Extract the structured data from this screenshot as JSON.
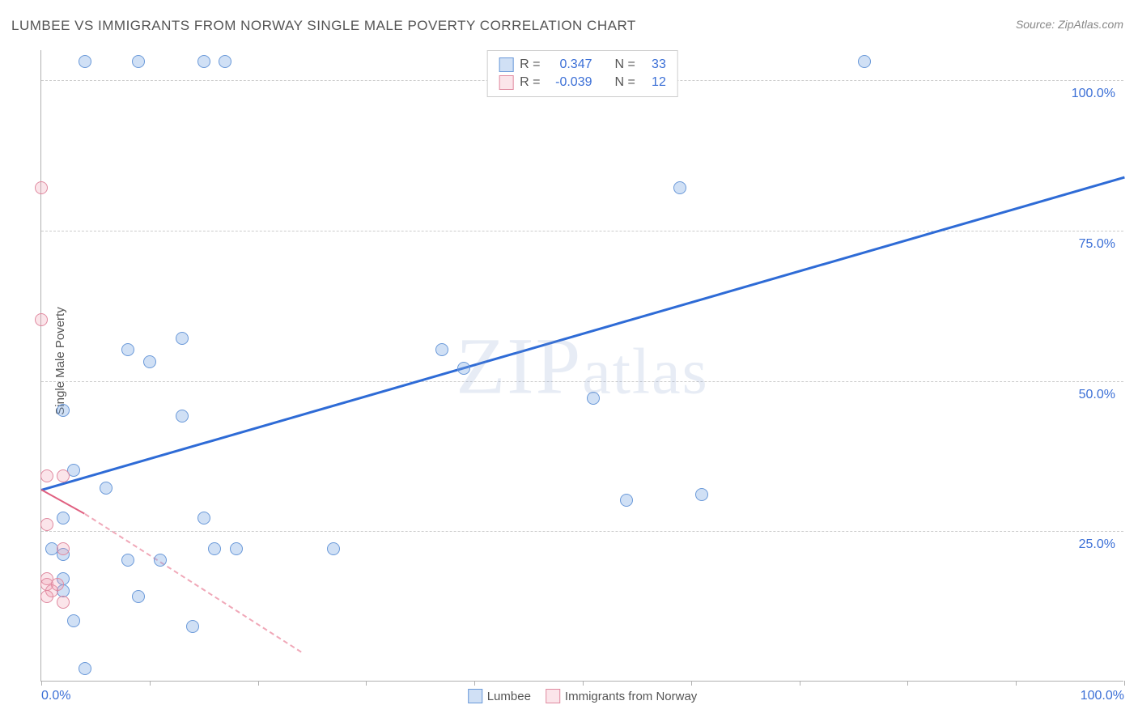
{
  "title": "LUMBEE VS IMMIGRANTS FROM NORWAY SINGLE MALE POVERTY CORRELATION CHART",
  "source": "Source: ZipAtlas.com",
  "y_axis_label": "Single Male Poverty",
  "watermark": "ZIPatlas",
  "chart": {
    "type": "scatter",
    "xlim": [
      0,
      100
    ],
    "ylim": [
      0,
      105
    ],
    "x_ticks": [
      0,
      10,
      20,
      30,
      40,
      50,
      60,
      70,
      80,
      90,
      100
    ],
    "x_tick_labels": {
      "0": "0.0%",
      "100": "100.0%"
    },
    "y_gridlines": [
      25,
      50,
      75,
      100
    ],
    "y_tick_labels": {
      "25": "25.0%",
      "50": "50.0%",
      "75": "75.0%",
      "100": "100.0%"
    },
    "background_color": "#ffffff",
    "grid_color": "#cccccc",
    "axis_color": "#b0b0b0",
    "label_color": "#3b6fd6",
    "point_radius": 8,
    "series": [
      {
        "name": "Lumbee",
        "fill_color": "rgba(120,165,225,0.35)",
        "stroke_color": "#6a99d9",
        "r_value": "0.347",
        "n_value": "33",
        "regression": {
          "x1": 0,
          "y1": 32,
          "x2": 100,
          "y2": 84,
          "color": "#2e6bd6",
          "width": 2.5
        },
        "points": [
          {
            "x": 4,
            "y": 103
          },
          {
            "x": 9,
            "y": 103
          },
          {
            "x": 15,
            "y": 103
          },
          {
            "x": 17,
            "y": 103
          },
          {
            "x": 76,
            "y": 103
          },
          {
            "x": 59,
            "y": 82
          },
          {
            "x": 8,
            "y": 55
          },
          {
            "x": 10,
            "y": 53
          },
          {
            "x": 13,
            "y": 57
          },
          {
            "x": 37,
            "y": 55
          },
          {
            "x": 39,
            "y": 52
          },
          {
            "x": 51,
            "y": 47
          },
          {
            "x": 2,
            "y": 45
          },
          {
            "x": 13,
            "y": 44
          },
          {
            "x": 3,
            "y": 35
          },
          {
            "x": 6,
            "y": 32
          },
          {
            "x": 54,
            "y": 30
          },
          {
            "x": 61,
            "y": 31
          },
          {
            "x": 15,
            "y": 27
          },
          {
            "x": 2,
            "y": 27
          },
          {
            "x": 1,
            "y": 22
          },
          {
            "x": 2,
            "y": 21
          },
          {
            "x": 8,
            "y": 20
          },
          {
            "x": 11,
            "y": 20
          },
          {
            "x": 16,
            "y": 22
          },
          {
            "x": 18,
            "y": 22
          },
          {
            "x": 27,
            "y": 22
          },
          {
            "x": 2,
            "y": 17
          },
          {
            "x": 2,
            "y": 15
          },
          {
            "x": 9,
            "y": 14
          },
          {
            "x": 3,
            "y": 10
          },
          {
            "x": 14,
            "y": 9
          },
          {
            "x": 4,
            "y": 2
          }
        ]
      },
      {
        "name": "Immigrants from Norway",
        "fill_color": "rgba(240,150,170,0.25)",
        "stroke_color": "#e08aa0",
        "r_value": "-0.039",
        "n_value": "12",
        "regression_solid": {
          "x1": 0,
          "y1": 32,
          "x2": 4,
          "y2": 28,
          "color": "#e06080",
          "width": 2
        },
        "regression_dash": {
          "x1": 4,
          "y1": 28,
          "x2": 24,
          "y2": 5,
          "color": "#f0a8b8",
          "width": 2
        },
        "points": [
          {
            "x": 0,
            "y": 82
          },
          {
            "x": 0,
            "y": 60
          },
          {
            "x": 0.5,
            "y": 34
          },
          {
            "x": 2,
            "y": 34
          },
          {
            "x": 0.5,
            "y": 26
          },
          {
            "x": 2,
            "y": 22
          },
          {
            "x": 0.5,
            "y": 17
          },
          {
            "x": 0.5,
            "y": 16
          },
          {
            "x": 1,
            "y": 15
          },
          {
            "x": 1.5,
            "y": 16
          },
          {
            "x": 0.5,
            "y": 14
          },
          {
            "x": 2,
            "y": 13
          }
        ]
      }
    ]
  },
  "legend_top": {
    "r_label": "R =",
    "n_label": "N ="
  },
  "legend_bottom": {
    "items": [
      "Lumbee",
      "Immigrants from Norway"
    ]
  }
}
